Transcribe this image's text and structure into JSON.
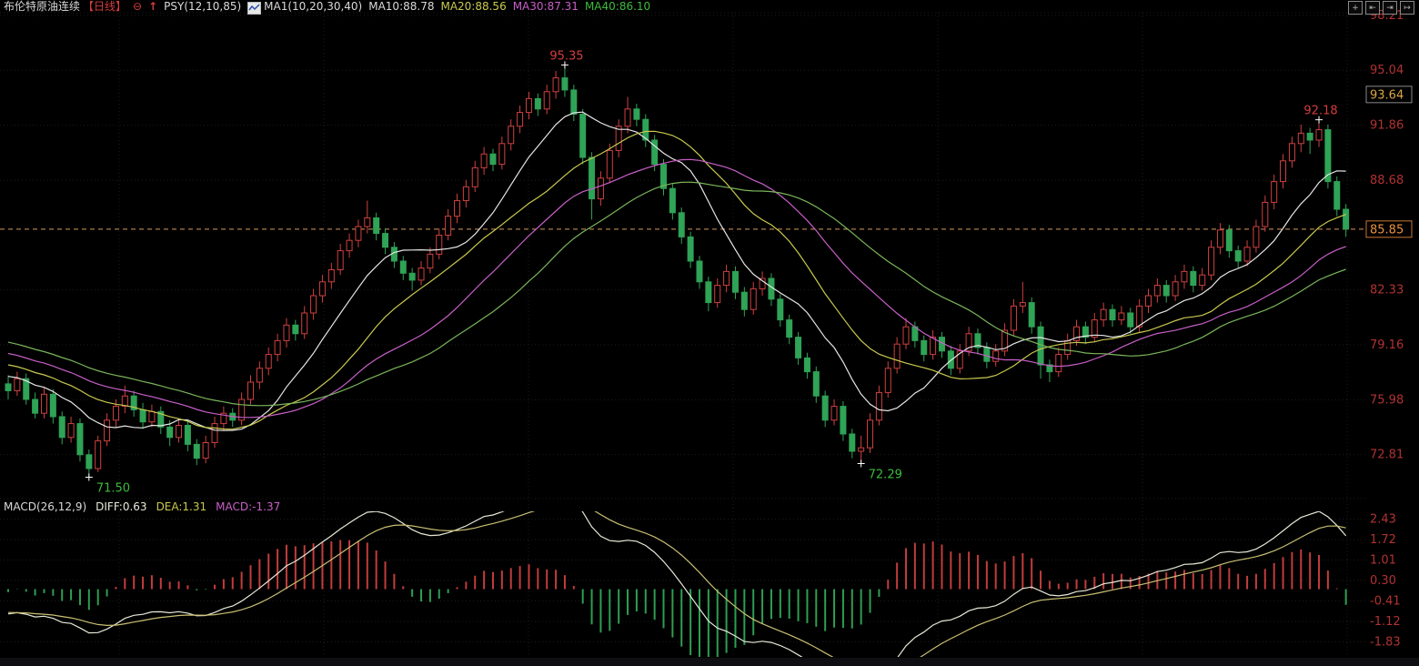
{
  "header": {
    "title": "布伦特原油连续",
    "period": "【日线】",
    "minus_circle_glyph": "⊖",
    "up_arrow_glyph": "↑",
    "psy_label": "PSY(12,10,85)",
    "ma_group_label": "MA1(10,20,30,40)",
    "ma_values": [
      {
        "label": "MA10:88.78",
        "color": "#d9d9d9"
      },
      {
        "label": "MA20:88.56",
        "color": "#c9c94f"
      },
      {
        "label": "MA30:87.31",
        "color": "#c75fc7"
      },
      {
        "label": "MA40:86.10",
        "color": "#3dbb3d"
      }
    ]
  },
  "toolbar": {
    "icons": [
      {
        "name": "crosshair-icon",
        "glyph": "+"
      },
      {
        "name": "pan-left-icon",
        "glyph": "⇤"
      },
      {
        "name": "pan-right-icon",
        "glyph": "⇥"
      },
      {
        "name": "collapse-panel-icon",
        "glyph": "↦"
      }
    ]
  },
  "macd_header": {
    "label": "MACD(26,12,9)",
    "diff": {
      "label": "DIFF:0.63",
      "color": "#e8e8d8"
    },
    "dea": {
      "label": "DEA:1.31",
      "color": "#c9c94f"
    },
    "macd": {
      "label": "MACD:-1.37",
      "color": "#c75fc7"
    }
  },
  "chart_data": {
    "type": "candlestick",
    "title": "布伦特原油连续 日线",
    "colors": {
      "up": "#cf4040",
      "down": "#2fa356",
      "axis_text": "#b03232",
      "grid": "#1c1c20",
      "last_price_line": "#d89a5a",
      "annotation_high": "#d43c3c",
      "annotation_low": "#3dbb3d"
    },
    "y_axis": {
      "ticks": [
        98.21,
        95.04,
        91.86,
        88.68,
        82.33,
        79.16,
        75.98,
        72.81
      ],
      "highlight_labels": [
        {
          "value": "93.64",
          "price": 93.64,
          "text_color": "#d8a545",
          "border_color": "#8a8a8a"
        },
        {
          "value": "85.85",
          "price": 85.85,
          "text_color": "#e8923f",
          "border_color": "#c87830"
        }
      ]
    },
    "last_price": {
      "value": 85.85
    },
    "annotations": [
      {
        "value": "95.35",
        "price": 95.35,
        "index": 62,
        "kind": "high"
      },
      {
        "value": "92.18",
        "price": 92.18,
        "index": 146,
        "kind": "high"
      },
      {
        "value": "71.50",
        "price": 71.5,
        "index": 9,
        "kind": "low"
      },
      {
        "value": "72.29",
        "price": 72.29,
        "index": 95,
        "kind": "low"
      }
    ],
    "ma_series": [
      {
        "name": "MA10",
        "window": 10,
        "color": "#e6e6e6"
      },
      {
        "name": "MA20",
        "window": 20,
        "color": "#c9c94f"
      },
      {
        "name": "MA30",
        "window": 30,
        "color": "#c75fc7"
      },
      {
        "name": "MA40",
        "window": 40,
        "color": "#7ab55a"
      }
    ],
    "lead_in": {
      "from": 82.0,
      "to": 76.9,
      "n": 40
    },
    "macd": {
      "params": [
        26,
        12,
        9
      ],
      "ticks": [
        2.43,
        1.72,
        1.01,
        0.3,
        -0.41,
        -1.12,
        -1.83
      ],
      "diff_color": "#e8e8d8",
      "dea_color": "#c9bf72",
      "hist_up": "#c23c3c",
      "hist_down": "#2e9e52"
    },
    "candles": [
      [
        76.9,
        77.4,
        76.0,
        76.5
      ],
      [
        76.5,
        77.6,
        76.2,
        77.2
      ],
      [
        77.2,
        77.5,
        75.7,
        76.0
      ],
      [
        76.0,
        76.4,
        74.9,
        75.2
      ],
      [
        75.2,
        76.7,
        74.9,
        76.3
      ],
      [
        76.3,
        76.6,
        74.6,
        75.0
      ],
      [
        75.0,
        75.3,
        73.4,
        73.8
      ],
      [
        73.8,
        75.0,
        73.5,
        74.6
      ],
      [
        74.6,
        74.9,
        72.4,
        72.8
      ],
      [
        72.8,
        73.1,
        71.5,
        72.0
      ],
      [
        72.0,
        73.9,
        71.8,
        73.6
      ],
      [
        73.6,
        75.2,
        73.3,
        74.8
      ],
      [
        74.8,
        76.0,
        74.4,
        75.6
      ],
      [
        75.6,
        76.8,
        75.2,
        76.2
      ],
      [
        76.2,
        76.5,
        75.0,
        75.4
      ],
      [
        75.4,
        75.8,
        74.3,
        74.7
      ],
      [
        74.7,
        75.7,
        74.4,
        75.3
      ],
      [
        75.3,
        75.6,
        74.0,
        74.4
      ],
      [
        74.4,
        74.8,
        73.3,
        73.8
      ],
      [
        73.8,
        74.9,
        73.5,
        74.5
      ],
      [
        74.5,
        74.8,
        73.0,
        73.4
      ],
      [
        73.4,
        73.7,
        72.2,
        72.6
      ],
      [
        72.6,
        73.9,
        72.3,
        73.5
      ],
      [
        73.5,
        75.0,
        73.2,
        74.6
      ],
      [
        74.6,
        75.6,
        74.2,
        75.2
      ],
      [
        75.2,
        75.5,
        74.4,
        74.8
      ],
      [
        74.8,
        76.4,
        74.5,
        76.0
      ],
      [
        76.0,
        77.4,
        75.7,
        77.0
      ],
      [
        77.0,
        78.2,
        76.6,
        77.8
      ],
      [
        77.8,
        79.0,
        77.4,
        78.6
      ],
      [
        78.6,
        79.8,
        78.2,
        79.4
      ],
      [
        79.4,
        80.7,
        79.0,
        80.3
      ],
      [
        80.3,
        80.6,
        79.4,
        79.8
      ],
      [
        79.8,
        81.4,
        79.5,
        81.0
      ],
      [
        81.0,
        82.4,
        80.6,
        82.0
      ],
      [
        82.0,
        83.2,
        81.6,
        82.8
      ],
      [
        82.8,
        83.9,
        82.4,
        83.5
      ],
      [
        83.5,
        85.0,
        83.2,
        84.6
      ],
      [
        84.6,
        85.6,
        84.2,
        85.2
      ],
      [
        85.2,
        86.4,
        84.8,
        86.0
      ],
      [
        86.0,
        87.5,
        85.6,
        86.5
      ],
      [
        86.5,
        86.8,
        85.2,
        85.6
      ],
      [
        85.6,
        85.9,
        84.4,
        84.8
      ],
      [
        84.8,
        85.1,
        83.6,
        84.0
      ],
      [
        84.0,
        84.3,
        82.9,
        83.3
      ],
      [
        83.3,
        83.6,
        82.3,
        82.9
      ],
      [
        82.9,
        84.0,
        82.6,
        83.6
      ],
      [
        83.6,
        84.8,
        83.3,
        84.4
      ],
      [
        84.4,
        85.9,
        84.1,
        85.5
      ],
      [
        85.5,
        87.0,
        85.2,
        86.6
      ],
      [
        86.6,
        87.9,
        86.2,
        87.5
      ],
      [
        87.5,
        88.7,
        87.1,
        88.3
      ],
      [
        88.3,
        89.8,
        88.0,
        89.4
      ],
      [
        89.4,
        90.6,
        89.0,
        90.2
      ],
      [
        90.2,
        90.5,
        89.2,
        89.6
      ],
      [
        89.6,
        91.2,
        89.3,
        90.8
      ],
      [
        90.8,
        92.2,
        90.4,
        91.8
      ],
      [
        91.8,
        93.0,
        91.4,
        92.6
      ],
      [
        92.6,
        93.8,
        92.2,
        93.4
      ],
      [
        93.4,
        93.7,
        92.4,
        92.8
      ],
      [
        92.8,
        94.2,
        92.5,
        93.8
      ],
      [
        93.8,
        95.0,
        93.4,
        94.6
      ],
      [
        94.6,
        95.35,
        93.5,
        93.9
      ],
      [
        93.9,
        94.2,
        92.1,
        92.5
      ],
      [
        92.5,
        92.8,
        89.6,
        90.0
      ],
      [
        90.0,
        90.3,
        86.4,
        87.6
      ],
      [
        87.6,
        89.2,
        87.2,
        88.8
      ],
      [
        88.8,
        90.8,
        88.5,
        90.4
      ],
      [
        90.4,
        92.2,
        90.0,
        91.8
      ],
      [
        91.8,
        93.5,
        91.4,
        92.8
      ],
      [
        92.8,
        93.1,
        91.8,
        92.2
      ],
      [
        92.2,
        92.5,
        90.6,
        91.0
      ],
      [
        91.0,
        91.3,
        89.2,
        89.6
      ],
      [
        89.6,
        89.9,
        87.8,
        88.2
      ],
      [
        88.2,
        88.5,
        86.4,
        86.8
      ],
      [
        86.8,
        87.1,
        85.0,
        85.4
      ],
      [
        85.4,
        85.7,
        83.6,
        84.0
      ],
      [
        84.0,
        84.3,
        82.4,
        82.8
      ],
      [
        82.8,
        83.1,
        81.1,
        81.6
      ],
      [
        81.6,
        83.0,
        81.3,
        82.6
      ],
      [
        82.6,
        83.8,
        82.2,
        83.4
      ],
      [
        83.4,
        83.7,
        81.8,
        82.2
      ],
      [
        82.2,
        82.5,
        80.8,
        81.2
      ],
      [
        81.2,
        82.8,
        80.9,
        82.4
      ],
      [
        82.4,
        83.4,
        82.0,
        83.0
      ],
      [
        83.0,
        83.3,
        81.4,
        81.8
      ],
      [
        81.8,
        82.1,
        80.2,
        80.6
      ],
      [
        80.6,
        80.9,
        79.2,
        79.6
      ],
      [
        79.6,
        79.9,
        78.0,
        78.4
      ],
      [
        78.4,
        78.7,
        77.2,
        77.6
      ],
      [
        77.6,
        77.9,
        75.8,
        76.2
      ],
      [
        76.2,
        76.5,
        74.4,
        74.8
      ],
      [
        74.8,
        76.0,
        74.5,
        75.6
      ],
      [
        75.6,
        75.9,
        73.6,
        74.0
      ],
      [
        74.0,
        74.3,
        72.6,
        73.0
      ],
      [
        73.0,
        73.9,
        72.29,
        73.2
      ],
      [
        73.2,
        75.2,
        72.9,
        74.8
      ],
      [
        74.8,
        76.8,
        74.5,
        76.4
      ],
      [
        76.4,
        78.2,
        76.1,
        77.8
      ],
      [
        77.8,
        79.6,
        77.5,
        79.2
      ],
      [
        79.2,
        80.7,
        78.9,
        80.2
      ],
      [
        80.2,
        80.5,
        79.0,
        79.4
      ],
      [
        79.4,
        79.7,
        78.2,
        78.6
      ],
      [
        78.6,
        80.0,
        78.3,
        79.6
      ],
      [
        79.6,
        79.9,
        78.4,
        78.8
      ],
      [
        78.8,
        79.1,
        77.4,
        77.8
      ],
      [
        77.8,
        79.2,
        77.5,
        78.8
      ],
      [
        78.8,
        80.2,
        78.5,
        79.8
      ],
      [
        79.8,
        80.1,
        78.6,
        79.0
      ],
      [
        79.0,
        79.3,
        77.8,
        78.2
      ],
      [
        78.2,
        79.2,
        77.9,
        78.8
      ],
      [
        78.8,
        80.4,
        78.5,
        80.0
      ],
      [
        80.0,
        81.8,
        79.7,
        81.4
      ],
      [
        81.4,
        82.8,
        81.0,
        81.6
      ],
      [
        81.6,
        81.9,
        79.8,
        80.2
      ],
      [
        80.2,
        80.5,
        77.2,
        78.0
      ],
      [
        78.0,
        78.3,
        77.0,
        77.6
      ],
      [
        77.6,
        79.0,
        77.3,
        78.6
      ],
      [
        78.6,
        79.8,
        78.3,
        79.4
      ],
      [
        79.4,
        80.6,
        79.1,
        80.2
      ],
      [
        80.2,
        80.5,
        79.2,
        79.6
      ],
      [
        79.6,
        81.0,
        79.3,
        80.6
      ],
      [
        80.6,
        81.6,
        80.2,
        81.2
      ],
      [
        81.2,
        81.5,
        80.2,
        80.6
      ],
      [
        80.6,
        81.4,
        80.3,
        81.0
      ],
      [
        81.0,
        81.3,
        79.8,
        80.2
      ],
      [
        80.2,
        81.8,
        79.9,
        81.4
      ],
      [
        81.4,
        82.4,
        81.0,
        82.0
      ],
      [
        82.0,
        83.0,
        81.6,
        82.6
      ],
      [
        82.6,
        82.9,
        81.6,
        82.0
      ],
      [
        82.0,
        83.2,
        81.7,
        82.8
      ],
      [
        82.8,
        83.8,
        82.4,
        83.4
      ],
      [
        83.4,
        83.7,
        82.2,
        82.6
      ],
      [
        82.6,
        83.6,
        82.3,
        83.2
      ],
      [
        83.2,
        85.2,
        82.9,
        84.8
      ],
      [
        84.8,
        86.2,
        84.4,
        85.8
      ],
      [
        85.8,
        86.1,
        84.2,
        84.6
      ],
      [
        84.6,
        84.9,
        83.6,
        84.0
      ],
      [
        84.0,
        85.2,
        83.7,
        84.8
      ],
      [
        84.8,
        86.4,
        84.5,
        86.0
      ],
      [
        86.0,
        87.8,
        85.7,
        87.4
      ],
      [
        87.4,
        89.0,
        87.0,
        88.6
      ],
      [
        88.6,
        90.2,
        88.2,
        89.8
      ],
      [
        89.8,
        91.2,
        89.4,
        90.8
      ],
      [
        90.8,
        91.9,
        90.3,
        91.4
      ],
      [
        91.4,
        91.7,
        90.2,
        91.0
      ],
      [
        91.0,
        92.18,
        90.6,
        91.6
      ],
      [
        91.6,
        91.9,
        88.2,
        88.6
      ],
      [
        88.6,
        88.9,
        86.6,
        87.0
      ],
      [
        87.0,
        87.3,
        85.4,
        85.85
      ]
    ]
  }
}
